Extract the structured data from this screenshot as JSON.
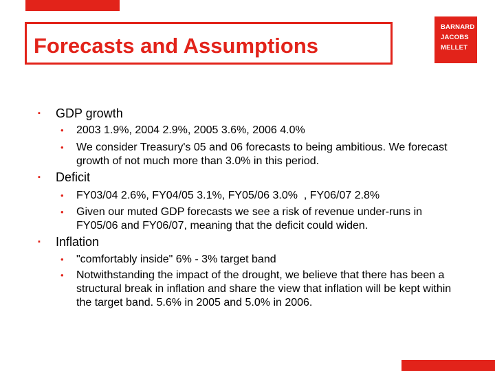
{
  "slide": {
    "title": "Forecasts and Assumptions",
    "logo": {
      "lines": [
        "BARNARD",
        "JACOBS",
        "MELLET"
      ]
    },
    "colors": {
      "accent": "#e2231a",
      "text": "#000000",
      "background": "#ffffff"
    },
    "sections": [
      {
        "heading": "GDP growth",
        "bullets": [
          "2003 1.9%, 2004 2.9%, 2005 3.6%, 2006 4.0%",
          "We consider Treasury's 05 and 06 forecasts to being ambitious. We forecast growth of not much more than 3.0% in this period."
        ]
      },
      {
        "heading": "Deficit",
        "bullets": [
          "FY03/04 2.6%, FY04/05 3.1%, FY05/06 3.0%  , FY06/07 2.8%",
          "Given our muted GDP forecasts we see a risk of revenue under-runs in FY05/06 and FY06/07, meaning that the deficit could widen."
        ]
      },
      {
        "heading": "Inflation",
        "bullets": [
          "\"comfortably inside\" 6% - 3% target band",
          "Notwithstanding the impact of the drought, we believe that there has been a structural break in inflation and share the view that inflation will be kept within the target band. 5.6% in 2005 and 5.0% in 2006."
        ]
      }
    ]
  }
}
